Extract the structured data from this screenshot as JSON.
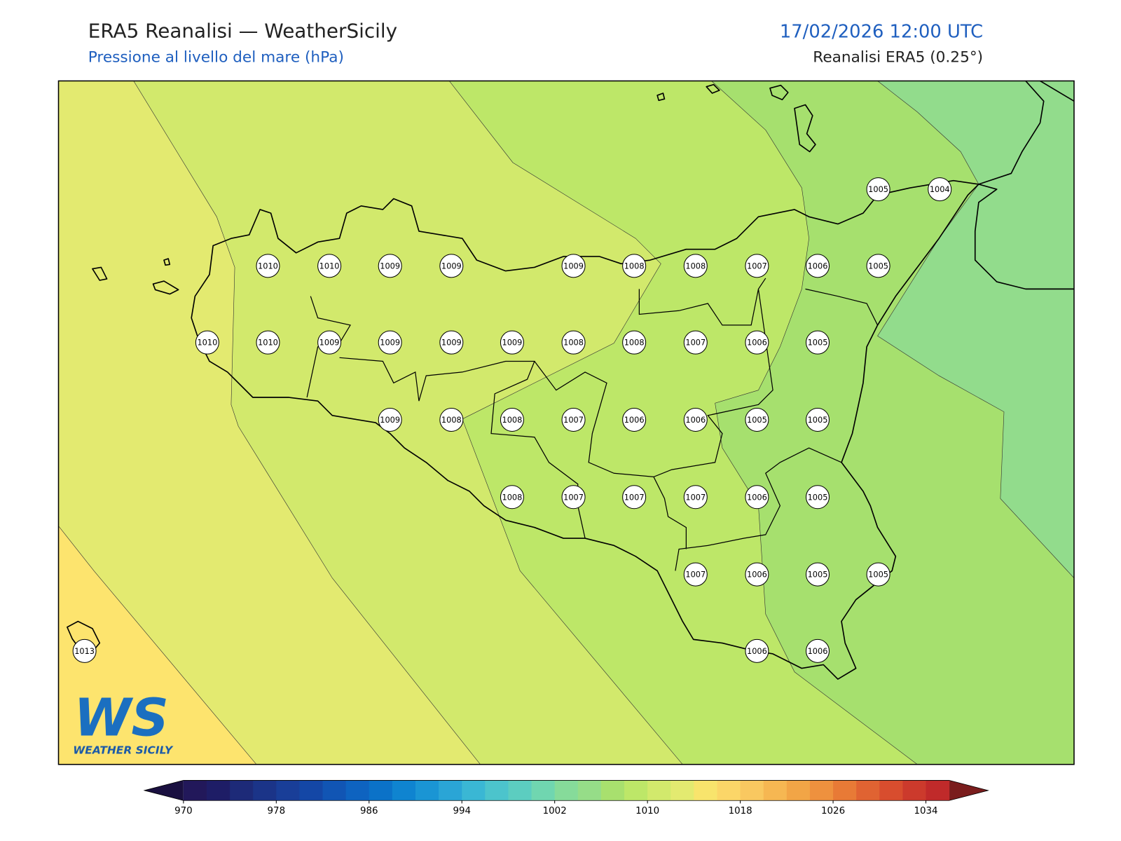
{
  "header": {
    "title": "ERA5 Reanalisi — WeatherSicily",
    "subtitle": "Pressione al livello del mare (hPa)",
    "datetime": "17/02/2026 12:00 UTC",
    "source": "Reanalisi ERA5 (0.25°)"
  },
  "stations": [
    1005,
    1004,
    1010,
    1010,
    1009,
    1009,
    1009,
    1008,
    1008,
    1007,
    1006,
    1005,
    1010,
    1010,
    1009,
    1009,
    1009,
    1009,
    1008,
    1008,
    1007,
    1006,
    1005,
    1009,
    1008,
    1008,
    1007,
    1006,
    1006,
    1005,
    1005,
    1008,
    1007,
    1007,
    1007,
    1006,
    1005,
    1007,
    1006,
    1005,
    1005,
    1013,
    1006,
    1006
  ],
  "colorbar": {
    "lim": [
      970,
      1036
    ],
    "ticks": [
      970,
      978,
      986,
      994,
      1002,
      1010,
      1018,
      1026,
      1034
    ],
    "colors": [
      "#22185a",
      "#1e1d66",
      "#1d2a78",
      "#1b3488",
      "#193e98",
      "#1447a6",
      "#1155b4",
      "#0e63c0",
      "#0b72c8",
      "#0f84d0",
      "#1a95d4",
      "#2aa5d6",
      "#3ab7d4",
      "#4cc4cc",
      "#5ccdc0",
      "#70d6b0",
      "#86db9a",
      "#96dd88",
      "#a8e06e",
      "#bde768",
      "#d2e96c",
      "#e3ea70",
      "#f8e46c",
      "#fbd668",
      "#f9c860",
      "#f6b752",
      "#f2a546",
      "#ee913e",
      "#e87a36",
      "#e06332",
      "#d84d2e",
      "#cc3a2c",
      "#c02a2a"
    ],
    "under_color": "#1a1040",
    "over_color": "#7a1d1d"
  },
  "logo": {
    "mark": "WS",
    "text": "WEATHER SICILY"
  }
}
